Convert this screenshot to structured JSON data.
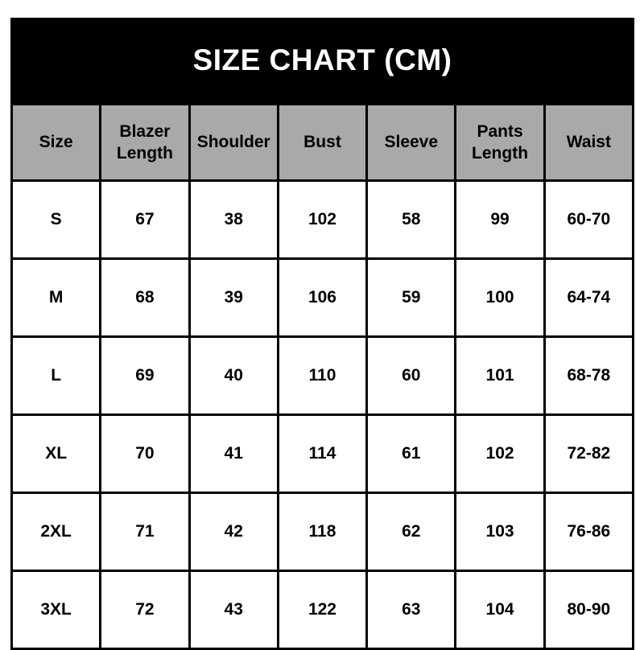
{
  "page": {
    "background": "#ffffff"
  },
  "colors": {
    "title_bg": "#000000",
    "title_text": "#ffffff",
    "header_bg": "#a9a9a9",
    "cell_bg": "#ffffff",
    "border": "#000000",
    "cell_text": "#000000"
  },
  "chart_data": {
    "type": "table",
    "title": "SIZE CHART (CM)",
    "units": "cm",
    "columns": [
      "Size",
      "Blazer Length",
      "Shoulder",
      "Bust",
      "Sleeve",
      "Pants Length",
      "Waist"
    ],
    "rows": [
      [
        "S",
        "67",
        "38",
        "102",
        "58",
        "99",
        "60-70"
      ],
      [
        "M",
        "68",
        "39",
        "106",
        "59",
        "100",
        "64-74"
      ],
      [
        "L",
        "69",
        "40",
        "110",
        "60",
        "101",
        "68-78"
      ],
      [
        "XL",
        "70",
        "41",
        "114",
        "61",
        "102",
        "72-82"
      ],
      [
        "2XL",
        "71",
        "42",
        "118",
        "62",
        "103",
        "76-86"
      ],
      [
        "3XL",
        "72",
        "43",
        "122",
        "63",
        "104",
        "80-90"
      ]
    ]
  }
}
